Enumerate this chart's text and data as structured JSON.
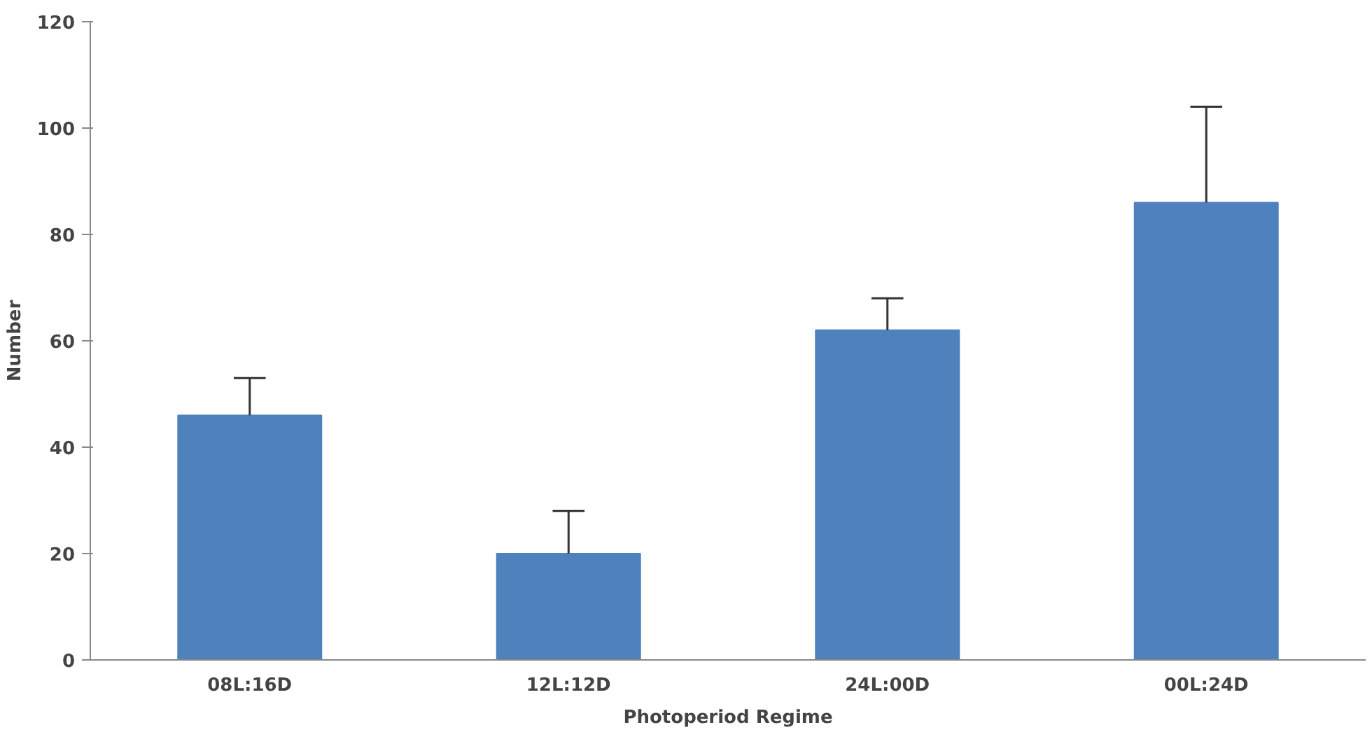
{
  "chart_data": {
    "type": "bar",
    "xlabel": "Photoperiod Regime",
    "ylabel": "Number",
    "categories": [
      "08L:16D",
      "12L:12D",
      "24L:00D",
      "00L:24D"
    ],
    "values": [
      46,
      20,
      62,
      86
    ],
    "errors": [
      [
        46,
        53
      ],
      [
        20,
        28
      ],
      [
        62,
        68
      ],
      [
        86,
        104
      ]
    ],
    "color": "#4f81bd",
    "ylim": [
      0,
      120
    ],
    "yticks": [
      0,
      20,
      40,
      60,
      80,
      100,
      120
    ],
    "grid": false
  }
}
